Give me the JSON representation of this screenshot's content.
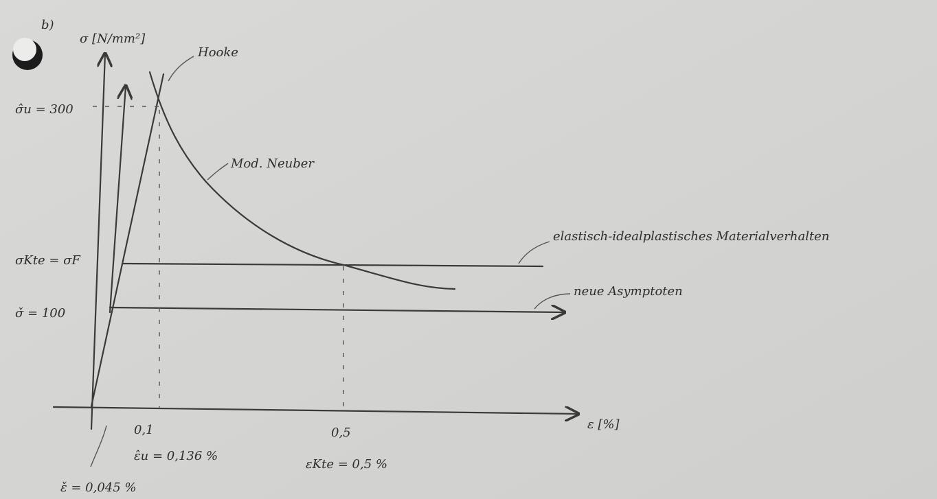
{
  "label": "b)",
  "axes": {
    "y_label": "σ [N/mm²]",
    "x_label": "ε [%]"
  },
  "y_labels": [
    "σ̂u = 300",
    "σKte = σF",
    "σ̌ = 100"
  ],
  "x_labels": [
    "0,1",
    "0,5"
  ],
  "x_notes": [
    "ε̂u = 0,136 %",
    "εKte = 0,5 %",
    "ε̌ = 0,045 %"
  ],
  "curves": {
    "hooke": "Hooke",
    "neuber": "Mod. Neuber",
    "plastic": "elastisch-idealplastisches Materialverhalten",
    "asymptote": "neue Asymptoten"
  }
}
